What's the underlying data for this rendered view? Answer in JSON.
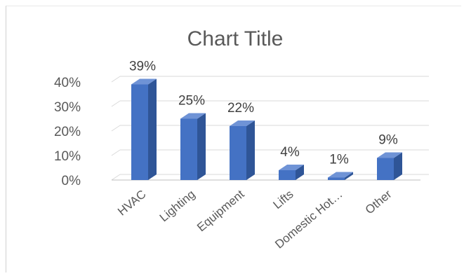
{
  "chart_data": {
    "type": "bar",
    "title": "Chart Title",
    "categories": [
      "HVAC",
      "Lighting",
      "Equipment",
      "Lifts",
      "Domestic Hot…",
      "Other"
    ],
    "values": [
      39,
      25,
      22,
      4,
      1,
      9
    ],
    "data_labels": [
      "39%",
      "25%",
      "22%",
      "4%",
      "1%",
      "9%"
    ],
    "y_ticks": [
      "0%",
      "10%",
      "20%",
      "30%",
      "40%"
    ],
    "ylim": [
      0,
      40
    ],
    "xlabel": "",
    "ylabel": "",
    "grid": true,
    "style": "3d-column",
    "colors": {
      "bar_front": "#4472c4",
      "bar_side": "#2f5597",
      "bar_top": "#6f93d6",
      "grid": "#d9d9d9"
    }
  }
}
